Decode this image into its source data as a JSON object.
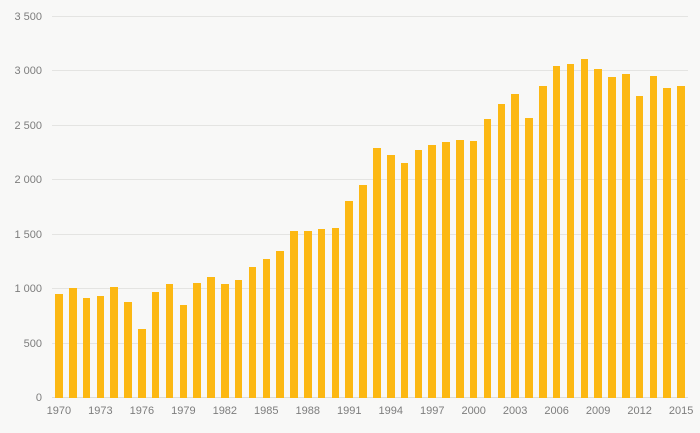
{
  "chart_data": {
    "type": "bar",
    "title": "",
    "xlabel": "",
    "ylabel": "",
    "categories": [
      1970,
      1971,
      1972,
      1973,
      1974,
      1975,
      1976,
      1977,
      1978,
      1979,
      1980,
      1981,
      1982,
      1983,
      1984,
      1985,
      1986,
      1987,
      1988,
      1989,
      1990,
      1991,
      1992,
      1993,
      1994,
      1995,
      1996,
      1997,
      1998,
      1999,
      2000,
      2001,
      2002,
      2003,
      2004,
      2005,
      2006,
      2007,
      2008,
      2009,
      2010,
      2011,
      2012,
      2013,
      2014,
      2015
    ],
    "values": [
      960,
      1010,
      920,
      940,
      1020,
      880,
      630,
      970,
      1050,
      850,
      1060,
      1110,
      1050,
      1080,
      1200,
      1280,
      1350,
      1530,
      1530,
      1550,
      1560,
      1810,
      1960,
      2300,
      2230,
      2160,
      2280,
      2320,
      2350,
      2370,
      2360,
      2560,
      2700,
      2790,
      2570,
      2870,
      3050,
      3070,
      3110,
      3020,
      2950,
      2980,
      2770,
      2960,
      2850,
      2870
    ],
    "ylim": [
      0,
      3500
    ],
    "ytick_interval": 500,
    "ytick_labels": [
      "0",
      "500",
      "1 000",
      "1 500",
      "2 000",
      "2 500",
      "3 000",
      "3 500"
    ],
    "xtick_labels": [
      "1970",
      "1973",
      "1976",
      "1979",
      "1982",
      "1985",
      "1988",
      "1991",
      "1994",
      "1997",
      "2000",
      "2003",
      "2006",
      "2009",
      "2012",
      "2015"
    ],
    "bar_color": "#fcb813",
    "grid": true,
    "legend": "none",
    "background_color": "#f8f8f7"
  }
}
